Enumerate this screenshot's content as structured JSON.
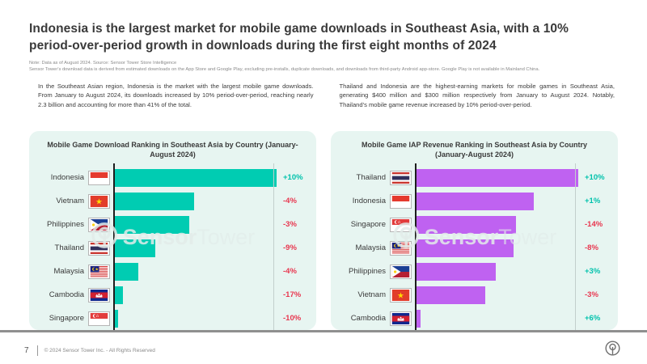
{
  "page": {
    "title": "Indonesia is the largest market for mobile game downloads in Southeast Asia, with a 10% period-over-period growth in downloads during the first eight months of 2024",
    "notes": [
      "Note: Data as of August 2024. Source: Sensor Tower Store Intelligence",
      "Sensor Tower's download data is derived from estimated downloads on the App Store and Google Play, excluding pre-installs, duplicate downloads, and downloads from third-party Android app-store. Google Play is not available in Mainland China."
    ],
    "intro_left": "In the Southeast Asian region, Indonesia is the market with the largest mobile game downloads. From January to August 2024, its downloads increased by 10% period-over-period, reaching nearly 2.3 billion and accounting for more than 41% of the total.",
    "intro_right": "Thailand and Indonesia are the highest-earning markets for mobile games in Southeast Asia, generating $400 million and $300 million respectively from January to August 2024. Notably, Thailand's mobile game revenue increased by 10% period-over-period.",
    "watermark": {
      "logo": "sensor-tower-logo",
      "text_bold": "Sensor",
      "text_light": "Tower"
    },
    "footer": {
      "page_number": "7",
      "copyright": "© 2024 Sensor Tower Inc. - All Rights Reserved",
      "logo": "sensor-tower-logo"
    }
  },
  "colors": {
    "download_bar": "#00ccb2",
    "revenue_bar": "#bf62f1",
    "positive_change": "#00c2ac",
    "negative_change": "#e8364f",
    "panel_background": "#e7f5f1"
  },
  "chart_data": [
    {
      "type": "bar",
      "orientation": "horizontal",
      "title": "Mobile Game Download Ranking in Southeast Asia by Country (January-August 2024)",
      "categories": [
        "Indonesia",
        "Vietnam",
        "Philippines",
        "Thailand",
        "Malaysia",
        "Cambodia",
        "Singapore"
      ],
      "flags": [
        "indonesia",
        "vietnam",
        "philippines",
        "thailand",
        "malaysia",
        "cambodia",
        "singapore"
      ],
      "values_billions": [
        2.3,
        1.13,
        1.06,
        0.57,
        0.33,
        0.12,
        0.05
      ],
      "changes": [
        "+10%",
        "-4%",
        "-3%",
        "-9%",
        "-4%",
        "-17%",
        "-10%"
      ],
      "xlim": [
        0,
        2.3
      ],
      "x_min_label": "0B",
      "x_max_label": "2.3B",
      "bar_color": "#00ccb2",
      "grid": false,
      "legend": "none"
    },
    {
      "type": "bar",
      "orientation": "horizontal",
      "title": "Mobile Game IAP Revenue Ranking in Southeast Asia by Country (January-August 2024)",
      "categories": [
        "Thailand",
        "Indonesia",
        "Singapore",
        "Malaysia",
        "Philippines",
        "Vietnam",
        "Cambodia"
      ],
      "flags": [
        "thailand",
        "indonesia",
        "singapore",
        "malaysia",
        "philippines",
        "vietnam",
        "cambodia"
      ],
      "values_billions": [
        0.4,
        0.29,
        0.245,
        0.24,
        0.195,
        0.17,
        0.01
      ],
      "changes": [
        "+10%",
        "+1%",
        "-14%",
        "-8%",
        "+3%",
        "-3%",
        "+6%"
      ],
      "xlim": [
        0,
        0.4
      ],
      "x_min_label": "$0B",
      "x_max_label": "$0.4B",
      "bar_color": "#bf62f1",
      "grid": false,
      "legend": "none"
    }
  ]
}
